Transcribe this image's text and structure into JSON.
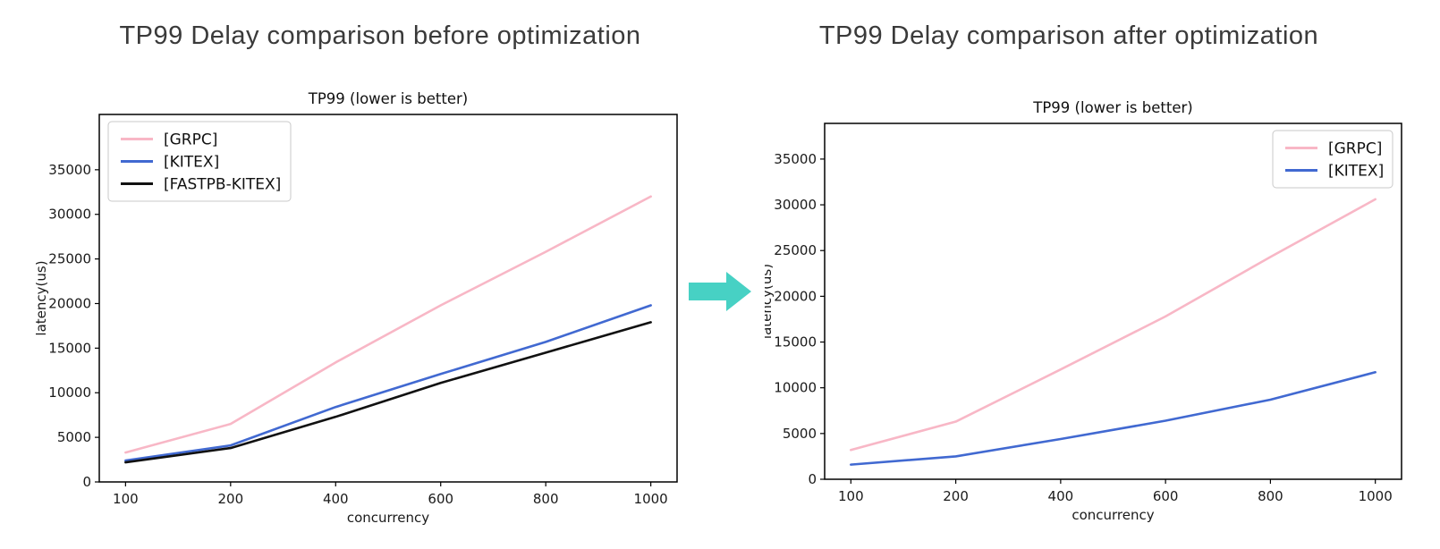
{
  "headlines": {
    "before": "TP99 Delay comparison before optimization",
    "after": "TP99 Delay comparison after optimization"
  },
  "arrow": {
    "icon": "right-arrow-icon",
    "color": "#47D1C4"
  },
  "chart_data": [
    {
      "id": "before",
      "type": "line",
      "title": "TP99 (lower is better)",
      "xlabel": "concurrency",
      "ylabel": "latency(us)",
      "categories": [
        "100",
        "200",
        "400",
        "600",
        "800",
        "1000"
      ],
      "yticks": [
        0,
        5000,
        10000,
        15000,
        20000,
        25000,
        30000,
        35000
      ],
      "ylim": [
        0,
        41200
      ],
      "grid": false,
      "legend_position": "top-left",
      "series": [
        {
          "name": "[GRPC]",
          "color": "#F8B7C6",
          "values": [
            3300,
            6500,
            13400,
            19800,
            25800,
            32000
          ]
        },
        {
          "name": "[KITEX]",
          "color": "#4169D1",
          "values": [
            2400,
            4100,
            8400,
            12100,
            15700,
            19800
          ]
        },
        {
          "name": "[FASTPB-KITEX]",
          "color": "#111111",
          "values": [
            2200,
            3800,
            7300,
            11100,
            14500,
            17900
          ]
        }
      ]
    },
    {
      "id": "after",
      "type": "line",
      "title": "TP99 (lower is better)",
      "xlabel": "concurrency",
      "ylabel": "latency(us)",
      "categories": [
        "100",
        "200",
        "400",
        "600",
        "800",
        "1000"
      ],
      "yticks": [
        0,
        5000,
        10000,
        15000,
        20000,
        25000,
        30000,
        35000
      ],
      "ylim": [
        0,
        38900
      ],
      "grid": false,
      "legend_position": "top-right",
      "series": [
        {
          "name": "[GRPC]",
          "color": "#F8B7C6",
          "values": [
            3200,
            6300,
            12000,
            17800,
            24300,
            30600
          ]
        },
        {
          "name": "[KITEX]",
          "color": "#4169D1",
          "values": [
            1600,
            2500,
            4400,
            6400,
            8700,
            11700
          ]
        }
      ]
    }
  ]
}
